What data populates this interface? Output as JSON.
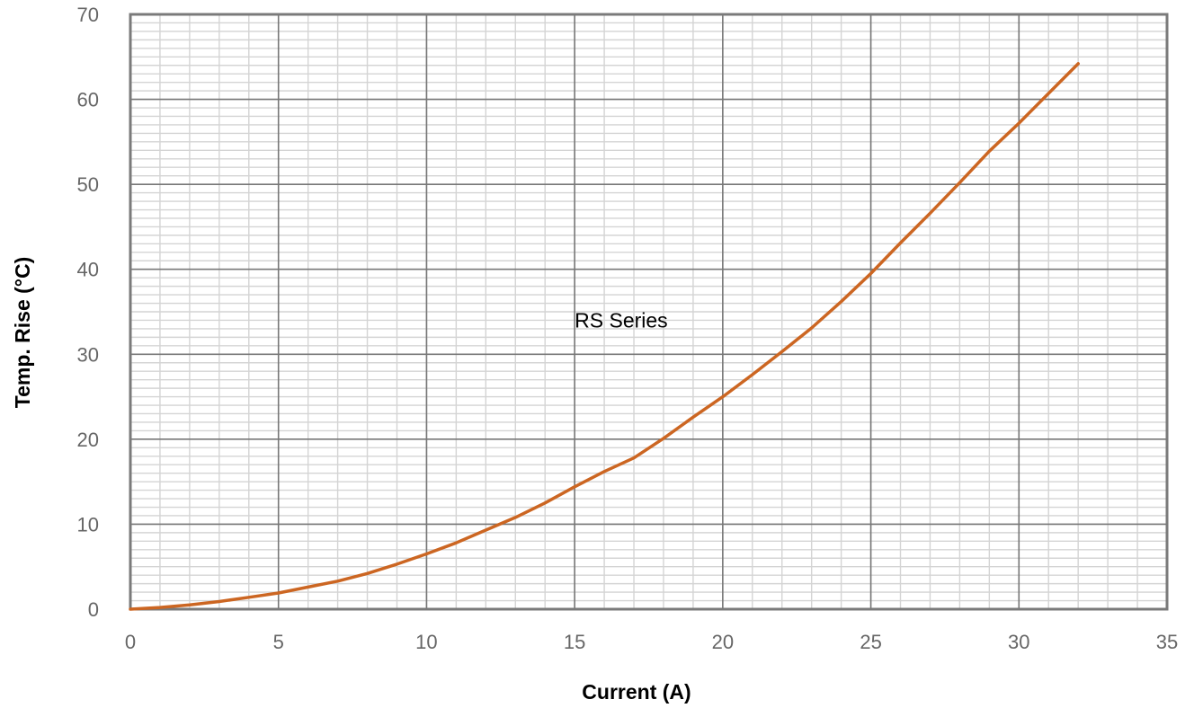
{
  "chart_data": {
    "type": "line",
    "title": "",
    "xlabel": "Current (A)",
    "ylabel": "Temp. Rise (°C)",
    "xlim": [
      0,
      35
    ],
    "ylim": [
      0,
      70
    ],
    "x_ticks": [
      0,
      5,
      10,
      15,
      20,
      25,
      30,
      35
    ],
    "y_ticks": [
      0,
      10,
      20,
      30,
      40,
      50,
      60,
      70
    ],
    "x_minor_step": 1,
    "y_minor_step": 1,
    "grid": true,
    "legend": "none",
    "annotations": [
      {
        "text": "RS Series",
        "x": 15,
        "y": 34
      }
    ],
    "series": [
      {
        "name": "RS Series",
        "color": "#cc6622",
        "x": [
          0,
          1,
          2,
          3,
          4,
          5,
          6,
          7,
          8,
          9,
          10,
          11,
          12,
          13,
          14,
          15,
          16,
          17,
          18,
          19,
          20,
          21,
          22,
          23,
          24,
          25,
          26,
          27,
          28,
          29,
          30,
          31,
          32
        ],
        "y": [
          0,
          0.2,
          0.5,
          0.9,
          1.4,
          1.9,
          2.6,
          3.3,
          4.2,
          5.3,
          6.5,
          7.8,
          9.3,
          10.8,
          12.5,
          14.4,
          16.2,
          17.8,
          20.1,
          22.6,
          25.0,
          27.6,
          30.3,
          33.1,
          36.2,
          39.5,
          43.1,
          46.6,
          50.2,
          53.9,
          57.2,
          60.7,
          64.2
        ]
      }
    ]
  },
  "colors": {
    "major_grid": "#777777",
    "minor_grid": "#d4d4d4",
    "frame": "#7a7a7a"
  }
}
